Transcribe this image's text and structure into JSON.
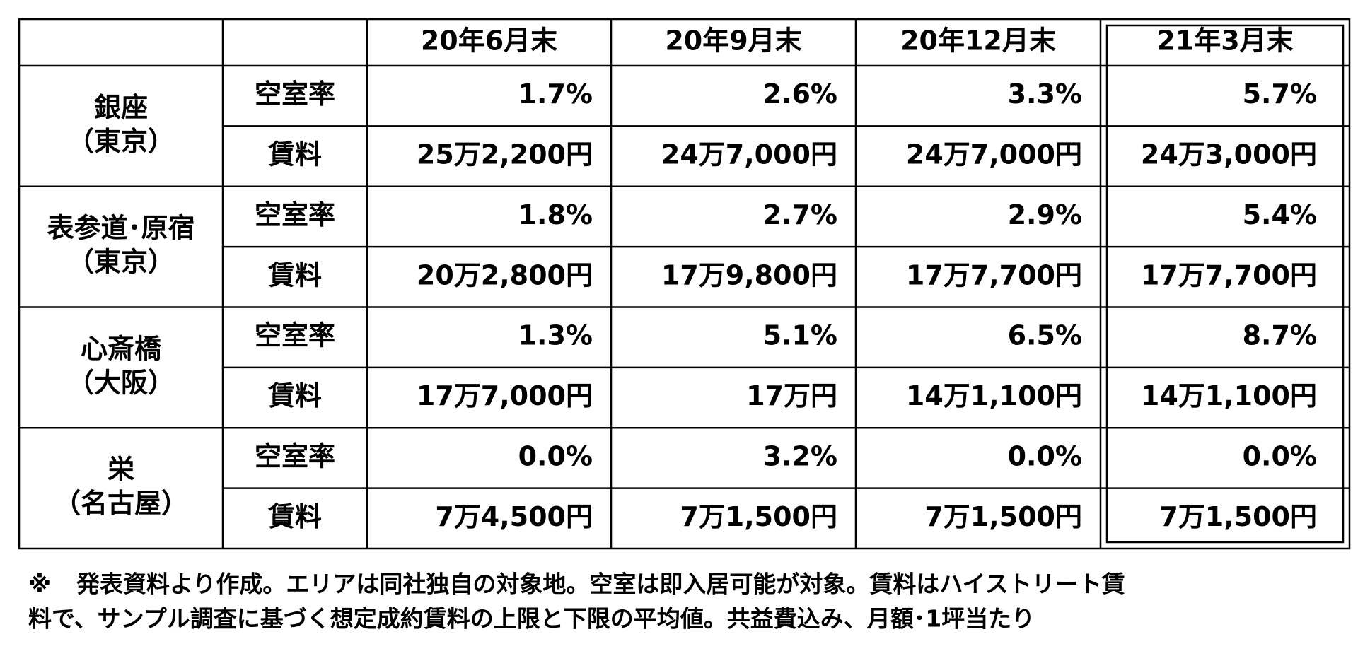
{
  "table": {
    "header": [
      "20年6月末",
      "20年9月末",
      "20年12月末",
      "21年3月末"
    ],
    "groups": [
      {
        "area": "銀座",
        "region": "（東京）",
        "rows": [
          {
            "label": "空室率",
            "values": [
              "1.7%",
              "2.6%",
              "3.3%",
              "5.7%"
            ]
          },
          {
            "label": "賃料",
            "values": [
              "25万2,200円",
              "24万7,000円",
              "24万7,000円",
              "24万3,000円"
            ]
          }
        ]
      },
      {
        "area": "表参道･原宿",
        "region": "（東京）",
        "rows": [
          {
            "label": "空室率",
            "values": [
              "1.8%",
              "2.7%",
              "2.9%",
              "5.4%"
            ]
          },
          {
            "label": "賃料",
            "values": [
              "20万2,800円",
              "17万9,800円",
              "17万7,700円",
              "17万7,700円"
            ]
          }
        ]
      },
      {
        "area": "心斎橋",
        "region": "（大阪）",
        "rows": [
          {
            "label": "空室率",
            "values": [
              "1.3%",
              "5.1%",
              "6.5%",
              "8.7%"
            ]
          },
          {
            "label": "賃料",
            "values": [
              "17万7,000円",
              "17万円",
              "14万1,100円",
              "14万1,100円"
            ]
          }
        ]
      },
      {
        "area": "栄",
        "region": "（名古屋）",
        "rows": [
          {
            "label": "空室率",
            "values": [
              "0.0%",
              "3.2%",
              "0.0%",
              "0.0%"
            ]
          },
          {
            "label": "賃料",
            "values": [
              "7万4,500円",
              "7万1,500円",
              "7万1,500円",
              "7万1,500円"
            ]
          }
        ]
      }
    ]
  },
  "note": {
    "mark": "※",
    "lines": [
      "発表資料より作成。エリアは同社独自の対象地。空室は即入居可能が対象。賃料はハイストリート賃",
      "料で、サンプル調査に基づく想定成約賃料の上限と下限の平均値。共益費込み、月額･1坪当たり"
    ]
  }
}
